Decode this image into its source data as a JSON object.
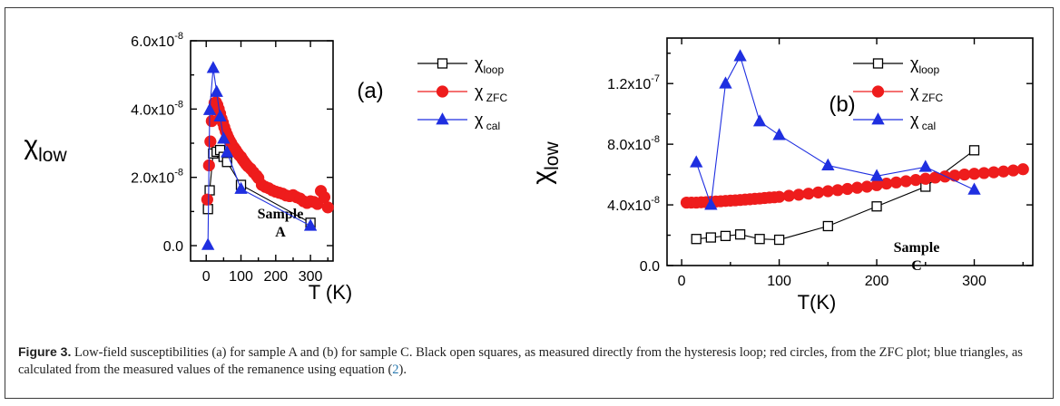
{
  "caption": {
    "label": "Figure 3.",
    "text_before": " Low-field susceptibilities (a) for sample A and (b) for sample C. Black open squares, as measured directly from the hysteresis loop; red circles, from the ZFC plot; blue triangles, as calculated from the measured values of the remanence using equation (",
    "ref": "2",
    "text_after": ")."
  },
  "colors": {
    "loop": "#000000",
    "zfc": "#ee1c1c",
    "cal": "#1f2fe0"
  },
  "chart_data": [
    {
      "type": "scatter",
      "panel_label": "(a)",
      "annotation": [
        "Sample",
        "A"
      ],
      "xlabel": "T (K)",
      "ylabel": "χ_low",
      "xlim": [
        -45,
        365
      ],
      "ylim": [
        -4.5e-09,
        6e-08
      ],
      "xticks": [
        0,
        100,
        200,
        300
      ],
      "xtick_labels": [
        "0",
        "100",
        "200",
        "300"
      ],
      "yticks": [
        0,
        2e-08,
        4e-08,
        6e-08
      ],
      "ytick_labels": [
        "0.0",
        "2.0x10",
        "4.0x10",
        "6.0x10"
      ],
      "ytick_exps": [
        "",
        "-8",
        "-8",
        "-8"
      ],
      "legend_position": "top-right",
      "series": [
        {
          "key": "loop",
          "legend_main": "χ",
          "legend_sub": "loop",
          "marker": "open-square",
          "connected": true,
          "x": [
            5,
            10,
            20,
            30,
            40,
            50,
            60,
            100,
            300
          ],
          "y": [
            1.07e-08,
            1.62e-08,
            2.7e-08,
            2.75e-08,
            2.8e-08,
            2.6e-08,
            2.45e-08,
            1.78e-08,
            6.7e-09
          ]
        },
        {
          "key": "zfc",
          "legend_main": "χ",
          "legend_sub": "ZFC",
          "marker": "filled-circle",
          "connected": false,
          "x": [
            3,
            8,
            12,
            16,
            20,
            24,
            28,
            32,
            36,
            40,
            44,
            48,
            52,
            56,
            60,
            64,
            68,
            72,
            76,
            80,
            85,
            90,
            95,
            100,
            105,
            110,
            115,
            120,
            128,
            136,
            145,
            150,
            160,
            170,
            180,
            190,
            200,
            210,
            220,
            230,
            240,
            250,
            260,
            270,
            280,
            290,
            300,
            310,
            320,
            330,
            340,
            350
          ],
          "y": [
            1.35e-08,
            2.35e-08,
            3.05e-08,
            3.65e-08,
            4e-08,
            4.18e-08,
            4.2e-08,
            4.12e-08,
            4e-08,
            3.87e-08,
            3.72e-08,
            3.6e-08,
            3.47e-08,
            3.35e-08,
            3.25e-08,
            3.15e-08,
            3.07e-08,
            3e-08,
            2.92e-08,
            2.87e-08,
            2.8e-08,
            2.72e-08,
            2.65e-08,
            2.6e-08,
            2.52e-08,
            2.45e-08,
            2.38e-08,
            2.32e-08,
            2.25e-08,
            2.15e-08,
            2.05e-08,
            1.98e-08,
            1.78e-08,
            1.72e-08,
            1.68e-08,
            1.62e-08,
            1.58e-08,
            1.55e-08,
            1.52e-08,
            1.47e-08,
            1.45e-08,
            1.48e-08,
            1.42e-08,
            1.38e-08,
            1.3e-08,
            1.25e-08,
            1.3e-08,
            1.28e-08,
            1.22e-08,
            1.6e-08,
            1.42e-08,
            1.12e-08
          ]
        },
        {
          "key": "cal",
          "legend_main": "χ",
          "legend_sub": "cal",
          "marker": "filled-triangle",
          "connected": true,
          "x": [
            5,
            10,
            20,
            30,
            40,
            50,
            60,
            100,
            300
          ],
          "y": [
            2e-10,
            3.97e-08,
            5.2e-08,
            4.5e-08,
            3.78e-08,
            3.13e-08,
            2.73e-08,
            1.66e-08,
            5.8e-09
          ]
        }
      ]
    },
    {
      "type": "scatter",
      "panel_label": "(b)",
      "annotation": [
        "Sample",
        "C"
      ],
      "xlabel": "T(K)",
      "ylabel": "χ_low",
      "xlim": [
        -15,
        360
      ],
      "ylim": [
        0,
        1.5e-07
      ],
      "xticks": [
        0,
        100,
        200,
        300
      ],
      "xtick_labels": [
        "0",
        "100",
        "200",
        "300"
      ],
      "yticks": [
        0,
        4e-08,
        8e-08,
        1.2e-07
      ],
      "ytick_labels": [
        "0.0",
        "4.0x10",
        "8.0x10",
        "1.2x10"
      ],
      "ytick_exps": [
        "",
        "-8",
        "-8",
        "-7"
      ],
      "legend_position": "top-right",
      "series": [
        {
          "key": "loop",
          "legend_main": "χ",
          "legend_sub": "loop",
          "marker": "open-square",
          "connected": true,
          "x": [
            15,
            30,
            45,
            60,
            80,
            100,
            150,
            200,
            250,
            300
          ],
          "y": [
            1.75e-08,
            1.85e-08,
            1.95e-08,
            2.05e-08,
            1.75e-08,
            1.7e-08,
            2.6e-08,
            3.9e-08,
            5.2e-08,
            7.6e-08
          ]
        },
        {
          "key": "zfc",
          "legend_main": "χ",
          "legend_sub": "ZFC",
          "marker": "filled-circle",
          "connected": true,
          "x": [
            5,
            10,
            15,
            20,
            25,
            30,
            35,
            40,
            45,
            50,
            55,
            60,
            65,
            70,
            75,
            80,
            85,
            90,
            95,
            100,
            110,
            120,
            130,
            140,
            150,
            160,
            170,
            180,
            190,
            200,
            210,
            220,
            230,
            240,
            250,
            260,
            270,
            280,
            290,
            300,
            310,
            320,
            330,
            340,
            350
          ],
          "y": [
            4.15e-08,
            4.15e-08,
            4.15e-08,
            4.17e-08,
            4.18e-08,
            4.2e-08,
            4.22e-08,
            4.24e-08,
            4.26e-08,
            4.28e-08,
            4.3e-08,
            4.32e-08,
            4.35e-08,
            4.37e-08,
            4.4e-08,
            4.42e-08,
            4.45e-08,
            4.48e-08,
            4.5e-08,
            4.53e-08,
            4.6e-08,
            4.67e-08,
            4.74e-08,
            4.82e-08,
            4.9e-08,
            4.97e-08,
            5.05e-08,
            5.13e-08,
            5.2e-08,
            5.3e-08,
            5.4e-08,
            5.48e-08,
            5.56e-08,
            5.64e-08,
            5.72e-08,
            5.8e-08,
            5.87e-08,
            5.93e-08,
            6e-08,
            6.05e-08,
            6.1e-08,
            6.15e-08,
            6.2e-08,
            6.27e-08,
            6.35e-08
          ]
        },
        {
          "key": "cal",
          "legend_main": "χ",
          "legend_sub": "cal",
          "marker": "filled-triangle",
          "connected": true,
          "x": [
            15,
            30,
            45,
            60,
            80,
            100,
            150,
            200,
            250,
            300
          ],
          "y": [
            6.8e-08,
            4e-08,
            1.2e-07,
            1.38e-07,
            9.5e-08,
            8.6e-08,
            6.6e-08,
            5.9e-08,
            6.5e-08,
            5e-08
          ]
        }
      ]
    }
  ]
}
